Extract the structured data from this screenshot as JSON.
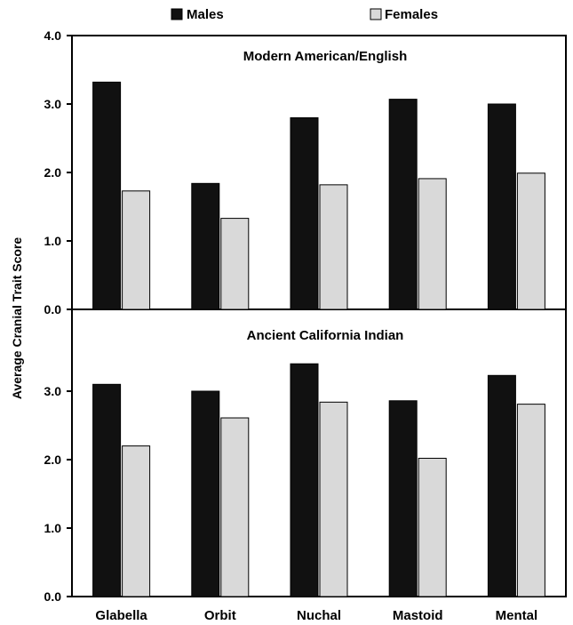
{
  "chart_data": {
    "type": "bar",
    "ylabel": "Average Cranial Trait Score",
    "categories": [
      "Glabella",
      "Orbit",
      "Nuchal",
      "Mastoid",
      "Mental"
    ],
    "legend": {
      "placement": "top",
      "entries": [
        {
          "name": "Males",
          "color": "#111111"
        },
        {
          "name": "Females",
          "color": "#d9d9d9"
        }
      ]
    },
    "grid": false,
    "panels": [
      {
        "title": "Modern American/English",
        "ylim": [
          0,
          4
        ],
        "yticks": [
          "0.0",
          "1.0",
          "2.0",
          "3.0",
          "4.0"
        ],
        "series": [
          {
            "name": "Males",
            "values": [
              3.32,
              1.84,
              2.8,
              3.07,
              3.0
            ]
          },
          {
            "name": "Females",
            "values": [
              1.73,
              1.33,
              1.82,
              1.91,
              1.99
            ]
          }
        ]
      },
      {
        "title": "Ancient California Indian",
        "ylim": [
          0,
          4
        ],
        "yticks": [
          "0.0",
          "1.0",
          "2.0",
          "3.0"
        ],
        "series": [
          {
            "name": "Males",
            "values": [
              3.1,
              3.0,
              3.4,
              2.86,
              3.23
            ]
          },
          {
            "name": "Females",
            "values": [
              2.2,
              2.61,
              2.84,
              2.02,
              2.81
            ]
          }
        ]
      }
    ]
  }
}
